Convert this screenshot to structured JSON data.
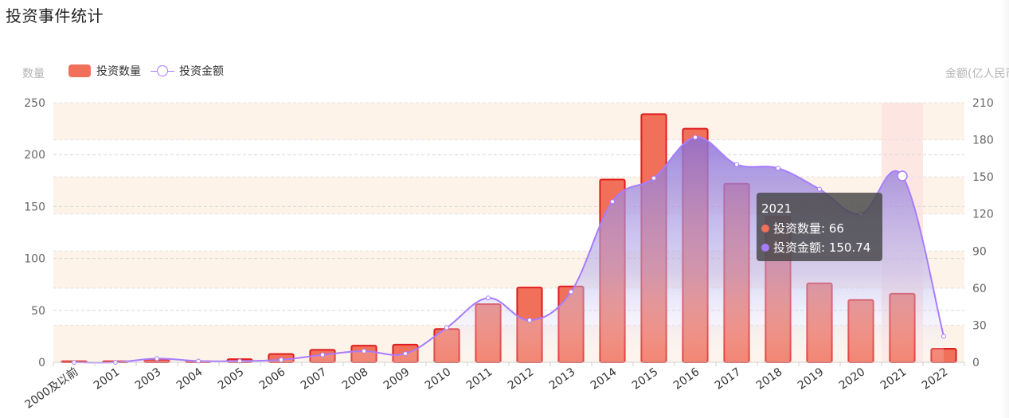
{
  "title": "投资事件统计",
  "legend": {
    "bar_label": "投资数量",
    "line_label": "投资金额"
  },
  "axis": {
    "left_name": "数量",
    "right_name": "金额(亿人民币)"
  },
  "colors": {
    "bar_fill": "#f0705a",
    "bar_stroke": "#e01e1e",
    "line": "#a77cff",
    "band": "#fdf3e9",
    "highlight": "#fde4e0"
  },
  "tooltip": {
    "title": "2021",
    "bar_line": "投资数量: 66",
    "amount_line": "投资金额: 150.74"
  },
  "chart_data": {
    "type": "bar",
    "categories": [
      "2000及以前",
      "2001",
      "2003",
      "2004",
      "2005",
      "2006",
      "2007",
      "2008",
      "2009",
      "2010",
      "2011",
      "2012",
      "2013",
      "2014",
      "2015",
      "2016",
      "2017",
      "2018",
      "2019",
      "2020",
      "2021",
      "2022"
    ],
    "series": [
      {
        "name": "投资数量",
        "type": "bar",
        "axis": "left",
        "values": [
          1,
          1,
          2,
          1,
          3,
          8,
          12,
          16,
          17,
          32,
          56,
          72,
          73,
          176,
          239,
          225,
          172,
          140,
          76,
          60,
          66,
          13
        ]
      },
      {
        "name": "投资金额",
        "type": "line",
        "axis": "right",
        "values": [
          0,
          0,
          3,
          1,
          1,
          2,
          6,
          9,
          7,
          28,
          52,
          34,
          57,
          130,
          149,
          182,
          160,
          157,
          140,
          120,
          150.74,
          21
        ]
      }
    ],
    "y_left": {
      "min": 0,
      "max": 250,
      "ticks": [
        0,
        50,
        100,
        150,
        200,
        250
      ]
    },
    "y_right": {
      "min": 0,
      "max": 210,
      "ticks": [
        0,
        30,
        60,
        90,
        120,
        150,
        180,
        210
      ]
    },
    "highlight_category": "2021",
    "legend_position": "top-left",
    "grid": true
  }
}
